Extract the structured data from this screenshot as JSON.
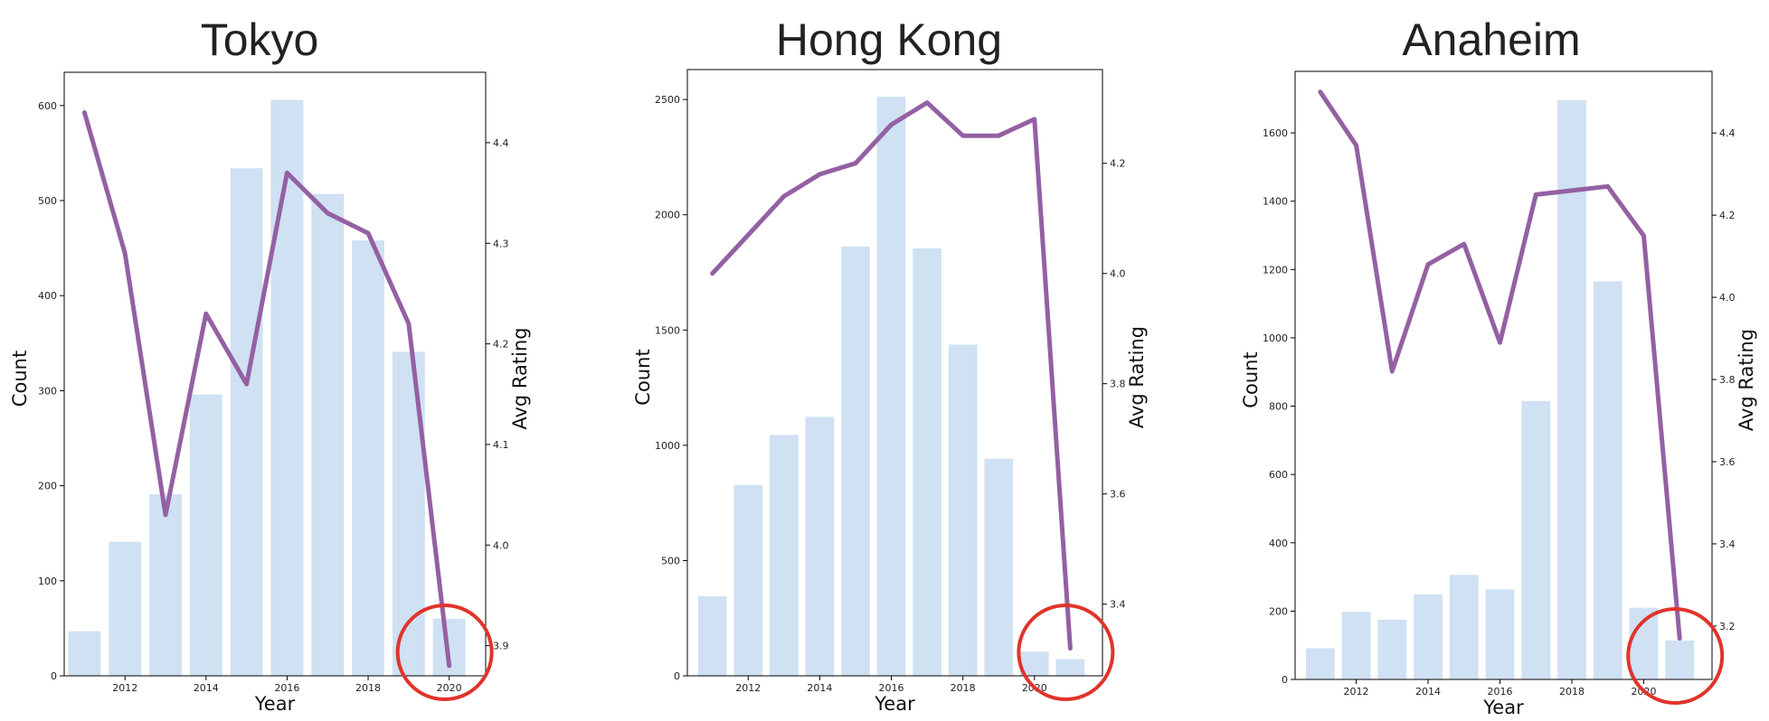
{
  "chart_data": [
    {
      "type": "bar+line",
      "title": "Tokyo",
      "xlabel": "Year",
      "ylabel": "Count",
      "y2label": "Avg Rating",
      "x": [
        2011,
        2012,
        2013,
        2014,
        2015,
        2016,
        2017,
        2018,
        2019,
        2020
      ],
      "xticks": [
        2012,
        2014,
        2016,
        2018,
        2020
      ],
      "xlim": [
        2010.5,
        2020.9
      ],
      "bars": {
        "name": "Count",
        "values": [
          47,
          141,
          191,
          296,
          534,
          606,
          507,
          458,
          341,
          60
        ]
      },
      "line": {
        "name": "Avg Rating",
        "values": [
          4.43,
          4.29,
          4.03,
          4.23,
          4.16,
          4.37,
          4.33,
          4.31,
          4.22,
          3.88
        ]
      },
      "ylim": [
        0,
        635
      ],
      "yticks": [
        0,
        100,
        200,
        300,
        400,
        500,
        600
      ],
      "y2lim": [
        3.87,
        4.47
      ],
      "y2ticks": [
        "3.9",
        "4.0",
        "4.1",
        "4.2",
        "4.3",
        "4.4"
      ],
      "highlight_x": 2020
    },
    {
      "type": "bar+line",
      "title": "Hong Kong",
      "xlabel": "Year",
      "ylabel": "Count",
      "y2label": "Avg Rating",
      "x": [
        2011,
        2012,
        2013,
        2014,
        2015,
        2016,
        2017,
        2018,
        2019,
        2020,
        2021
      ],
      "xticks": [
        2012,
        2014,
        2016,
        2018,
        2020
      ],
      "xlim": [
        2010.3,
        2021.9
      ],
      "bars": {
        "name": "Count",
        "values": [
          345,
          828,
          1045,
          1123,
          1862,
          2512,
          1854,
          1437,
          942,
          105,
          72
        ]
      },
      "line": {
        "name": "Avg Rating",
        "values": [
          4.0,
          4.07,
          4.14,
          4.18,
          4.2,
          4.27,
          4.31,
          4.25,
          4.25,
          4.28,
          3.32
        ]
      },
      "ylim": [
        0,
        2630
      ],
      "yticks": [
        0,
        500,
        1000,
        1500,
        2000,
        2500
      ],
      "y2lim": [
        3.27,
        4.37
      ],
      "y2ticks": [
        "3.4",
        "3.6",
        "3.8",
        "4.0",
        "4.2"
      ],
      "highlight_x": 2021
    },
    {
      "type": "bar+line",
      "title": "Anaheim",
      "xlabel": "Year",
      "ylabel": "Count",
      "y2label": "Avg Rating",
      "x": [
        2011,
        2012,
        2013,
        2014,
        2015,
        2016,
        2017,
        2018,
        2019,
        2020,
        2021
      ],
      "xticks": [
        2012,
        2014,
        2016,
        2018,
        2020
      ],
      "xlim": [
        2010.3,
        2021.9
      ],
      "bars": {
        "name": "Count",
        "values": [
          91,
          198,
          175,
          249,
          306,
          264,
          815,
          1696,
          1165,
          210,
          114
        ]
      },
      "line": {
        "name": "Avg Rating",
        "values": [
          4.5,
          4.37,
          3.82,
          4.08,
          4.13,
          3.89,
          4.25,
          4.26,
          4.27,
          4.15,
          3.17
        ]
      },
      "ylim": [
        0,
        1780
      ],
      "yticks": [
        0,
        200,
        400,
        600,
        800,
        1000,
        1200,
        1400,
        1600
      ],
      "y2lim": [
        3.07,
        4.55
      ],
      "y2ticks": [
        "3.2",
        "3.4",
        "3.6",
        "3.8",
        "4.0",
        "4.2",
        "4.4"
      ],
      "highlight_x": 2021
    }
  ],
  "colors": {
    "bar": "#cfe1f3",
    "line": "#9460a3",
    "highlight": "#e0342b",
    "axis": "#000000",
    "text": "#222222"
  }
}
